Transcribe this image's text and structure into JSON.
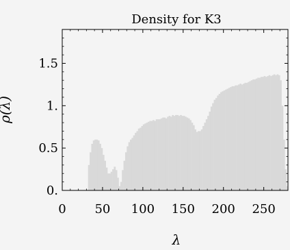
{
  "chart_data": {
    "type": "bar",
    "title": "Density for K3",
    "xlabel": "λ",
    "ylabel": "ρ(λ)",
    "xlim": [
      0,
      280
    ],
    "ylim": [
      0,
      1.9
    ],
    "x_ticks": [
      {
        "value": 0,
        "label": "0"
      },
      {
        "value": 50,
        "label": "50"
      },
      {
        "value": 100,
        "label": "100"
      },
      {
        "value": 150,
        "label": "150"
      },
      {
        "value": 200,
        "label": "200"
      },
      {
        "value": 250,
        "label": "250"
      }
    ],
    "y_ticks": [
      {
        "value": 0,
        "label": "0."
      },
      {
        "value": 0.5,
        "label": "0.5"
      },
      {
        "value": 1,
        "label": "1."
      },
      {
        "value": 1.5,
        "label": "1.5"
      }
    ],
    "bin_width": 2,
    "fill_color": "#d9d9d9",
    "bins_x": [
      30,
      32,
      34,
      36,
      38,
      40,
      42,
      44,
      46,
      48,
      50,
      52,
      54,
      56,
      58,
      60,
      62,
      64,
      66,
      68,
      70,
      72,
      74,
      76,
      78,
      80,
      82,
      84,
      86,
      88,
      90,
      92,
      94,
      96,
      98,
      100,
      102,
      104,
      106,
      108,
      110,
      112,
      114,
      116,
      118,
      120,
      122,
      124,
      126,
      128,
      130,
      132,
      134,
      136,
      138,
      140,
      142,
      144,
      146,
      148,
      150,
      152,
      154,
      156,
      158,
      160,
      162,
      164,
      166,
      168,
      170,
      172,
      174,
      176,
      178,
      180,
      182,
      184,
      186,
      188,
      190,
      192,
      194,
      196,
      198,
      200,
      202,
      204,
      206,
      208,
      210,
      212,
      214,
      216,
      218,
      220,
      222,
      224,
      226,
      228,
      230,
      232,
      234,
      236,
      238,
      240,
      242,
      244,
      246,
      248,
      250,
      252,
      254,
      256,
      258,
      260,
      262,
      264,
      266,
      268,
      270,
      272,
      274,
      276,
      278
    ],
    "bins_y": [
      0.0,
      0.3,
      0.45,
      0.55,
      0.59,
      0.6,
      0.6,
      0.59,
      0.55,
      0.5,
      0.42,
      0.35,
      0.27,
      0.2,
      0.2,
      0.22,
      0.25,
      0.28,
      0.24,
      0.15,
      0.05,
      0.1,
      0.24,
      0.35,
      0.45,
      0.52,
      0.57,
      0.6,
      0.62,
      0.65,
      0.68,
      0.7,
      0.73,
      0.74,
      0.76,
      0.78,
      0.79,
      0.8,
      0.81,
      0.82,
      0.82,
      0.83,
      0.82,
      0.84,
      0.84,
      0.84,
      0.85,
      0.86,
      0.86,
      0.85,
      0.87,
      0.88,
      0.87,
      0.89,
      0.88,
      0.89,
      0.89,
      0.88,
      0.89,
      0.88,
      0.88,
      0.87,
      0.86,
      0.85,
      0.83,
      0.8,
      0.77,
      0.72,
      0.69,
      0.7,
      0.7,
      0.72,
      0.76,
      0.8,
      0.84,
      0.88,
      0.93,
      0.99,
      1.03,
      1.07,
      1.09,
      1.12,
      1.14,
      1.16,
      1.17,
      1.18,
      1.19,
      1.2,
      1.21,
      1.22,
      1.23,
      1.23,
      1.24,
      1.24,
      1.25,
      1.26,
      1.25,
      1.26,
      1.27,
      1.27,
      1.28,
      1.29,
      1.3,
      1.31,
      1.31,
      1.32,
      1.33,
      1.33,
      1.34,
      1.34,
      1.35,
      1.34,
      1.35,
      1.36,
      1.35,
      1.36,
      1.37,
      1.36,
      1.37,
      1.36,
      1.3,
      1.0,
      0.6,
      0.25,
      0.05
    ]
  }
}
